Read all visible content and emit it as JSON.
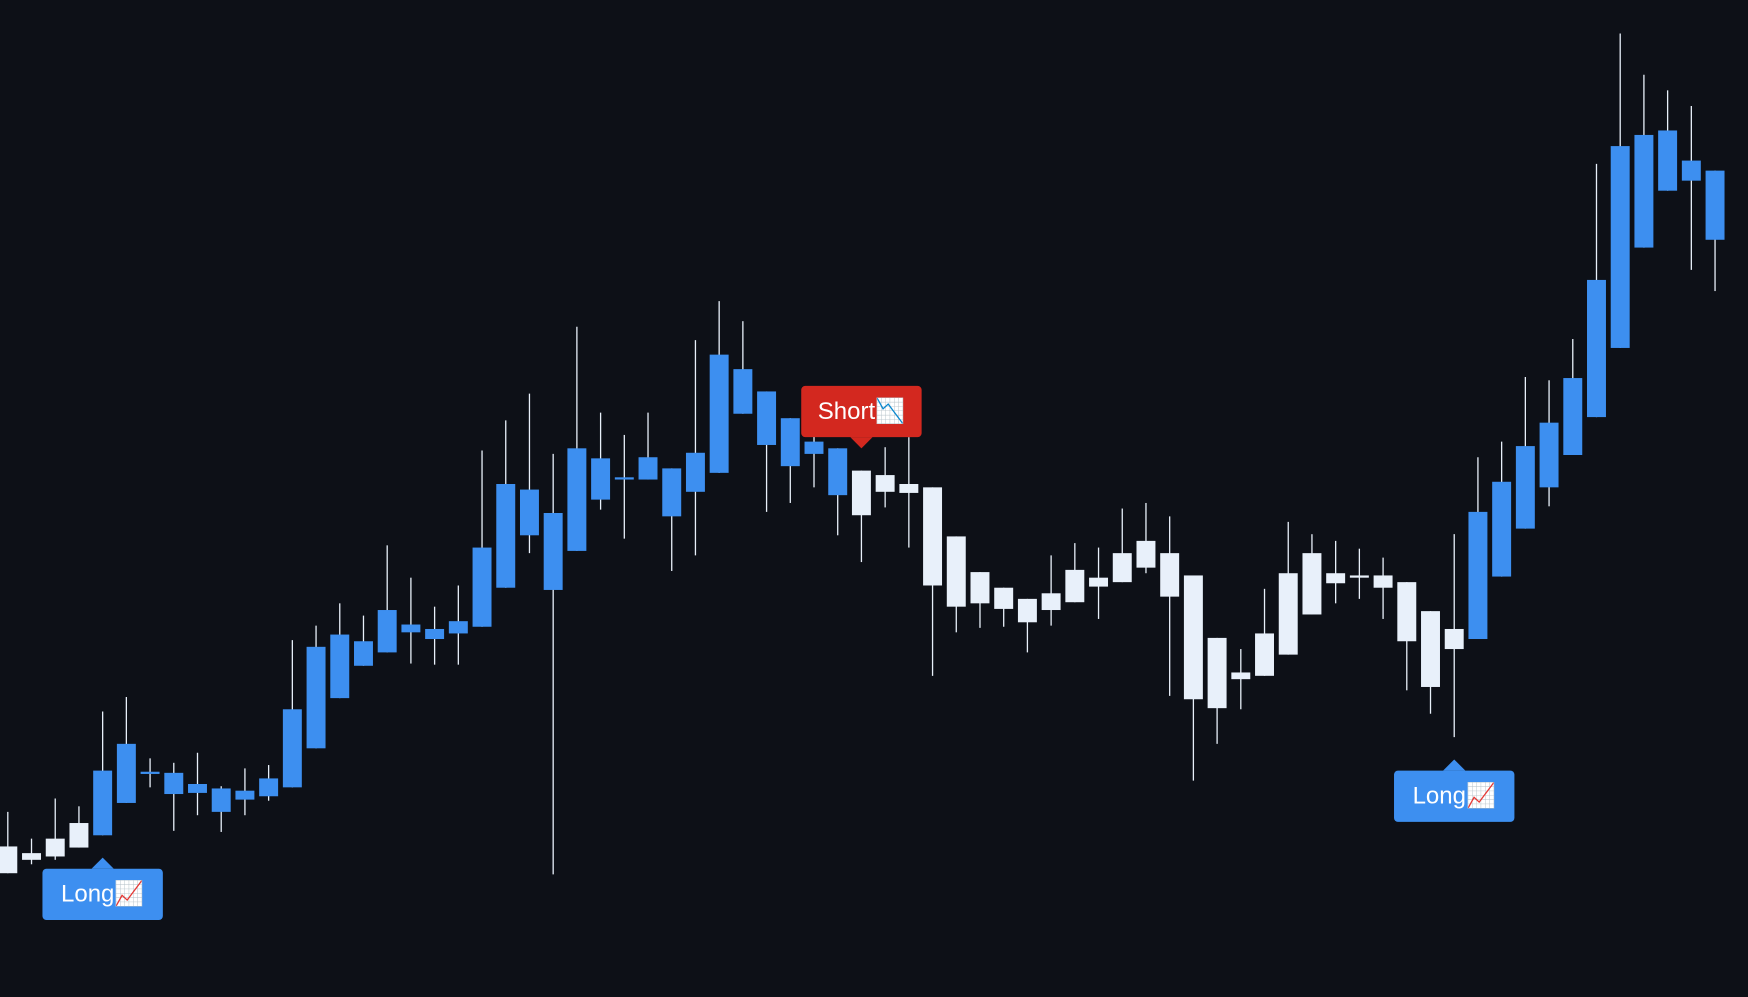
{
  "chart_data": {
    "type": "candlestick",
    "open": [
      135,
      129,
      142,
      156,
      145,
      174,
      200,
      182,
      183,
      166,
      177,
      180,
      188,
      223,
      268,
      297,
      309,
      327,
      321,
      326,
      332,
      367,
      414,
      365,
      400,
      446,
      464,
      464,
      431,
      453,
      470,
      523,
      495,
      476,
      487,
      450,
      472,
      468,
      460,
      457,
      413,
      381,
      367,
      357,
      362,
      383,
      376,
      398,
      409,
      398,
      378,
      322,
      291,
      326,
      380,
      398,
      380,
      378,
      378,
      372,
      346,
      330,
      321,
      377,
      420,
      457,
      486,
      520,
      582,
      672,
      723,
      732,
      679
    ],
    "high": [
      166,
      142,
      178,
      171,
      256,
      269,
      214,
      210,
      219,
      189,
      205,
      208,
      320,
      333,
      353,
      342,
      405,
      376,
      350,
      369,
      490,
      517,
      541,
      487,
      601,
      524,
      504,
      524,
      474,
      589,
      624,
      606,
      543,
      519,
      542,
      492,
      472,
      493,
      502,
      457,
      413,
      381,
      367,
      357,
      396,
      407,
      403,
      438,
      443,
      431,
      378,
      322,
      312,
      366,
      426,
      415,
      409,
      402,
      394,
      372,
      346,
      415,
      484,
      498,
      556,
      553,
      590,
      747,
      864,
      827,
      813,
      799,
      741
    ],
    "low": [
      111,
      119,
      123,
      134,
      145,
      174,
      188,
      149,
      163,
      148,
      163,
      176,
      188,
      223,
      268,
      297,
      309,
      299,
      298,
      298,
      332,
      367,
      398,
      110,
      400,
      437,
      411,
      464,
      382,
      396,
      470,
      523,
      435,
      443,
      457,
      414,
      390,
      439,
      403,
      288,
      327,
      331,
      332,
      309,
      333,
      354,
      339,
      372,
      380,
      270,
      194,
      227,
      258,
      288,
      307,
      343,
      353,
      357,
      339,
      275,
      254,
      233,
      321,
      377,
      420,
      440,
      486,
      520,
      582,
      672,
      723,
      652,
      633
    ],
    "close": [
      111,
      123,
      126,
      134,
      203,
      227,
      202,
      201,
      191,
      187,
      185,
      196,
      258,
      314,
      325,
      319,
      347,
      334,
      330,
      337,
      403,
      460,
      455,
      434,
      492,
      483,
      466,
      484,
      474,
      488,
      576,
      563,
      543,
      519,
      498,
      492,
      432,
      453,
      452,
      369,
      350,
      353,
      348,
      336,
      347,
      354,
      368,
      372,
      385,
      359,
      267,
      259,
      285,
      288,
      307,
      343,
      371,
      376,
      367,
      319,
      278,
      312,
      435,
      462,
      494,
      515,
      555,
      643,
      763,
      773,
      777,
      750,
      741
    ],
    "up_color": "#3d8ff0",
    "down_color": "#e8f0fa",
    "wick_color": "#e8f0fa",
    "ylim": [
      0,
      894
    ],
    "annotations": [
      {
        "text": "Long📈",
        "x": 4,
        "position": "below",
        "color": "#3d8ff0"
      },
      {
        "text": "Short📉",
        "x": 36,
        "position": "above",
        "color": "#d3281f"
      },
      {
        "text": "Long📈",
        "x": 61,
        "position": "below",
        "color": "#3d8ff0"
      }
    ]
  }
}
